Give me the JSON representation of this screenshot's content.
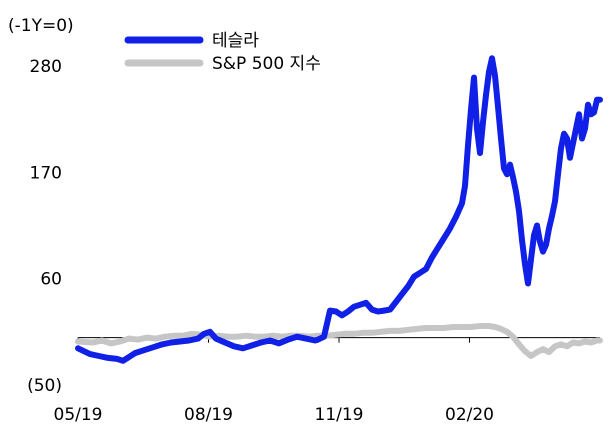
{
  "chart_data": {
    "type": "line",
    "unit_label": "(-1Y=0)",
    "x_ticks": [
      "05/19",
      "08/19",
      "11/19",
      "02/20"
    ],
    "y_ticks": [
      280,
      170,
      60,
      -50
    ],
    "y_tick_labels": [
      "280",
      "170",
      "60",
      "(50)"
    ],
    "ylim": [
      -50,
      280
    ],
    "grid": false,
    "legend": "top-left",
    "series": [
      {
        "name": "테슬라",
        "color": "#1020e6",
        "points": [
          [
            0,
            -12
          ],
          [
            4,
            -18
          ],
          [
            7,
            -20
          ],
          [
            10,
            -22
          ],
          [
            13,
            -23
          ],
          [
            15,
            -25
          ],
          [
            17,
            -21
          ],
          [
            19,
            -17
          ],
          [
            22,
            -14
          ],
          [
            25,
            -11
          ],
          [
            28,
            -8
          ],
          [
            31,
            -6
          ],
          [
            34,
            -5
          ],
          [
            37,
            -4
          ],
          [
            40,
            -2
          ],
          [
            42,
            3
          ],
          [
            44,
            5
          ],
          [
            46,
            -2
          ],
          [
            49,
            -6
          ],
          [
            52,
            -10
          ],
          [
            55,
            -12
          ],
          [
            58,
            -9
          ],
          [
            61,
            -6
          ],
          [
            64,
            -4
          ],
          [
            67,
            -7
          ],
          [
            70,
            -3
          ],
          [
            73,
            0
          ],
          [
            76,
            -2
          ],
          [
            79,
            -4
          ],
          [
            80,
            -3
          ],
          [
            82,
            0
          ],
          [
            84,
            27
          ],
          [
            86,
            26
          ],
          [
            88,
            22
          ],
          [
            90,
            26
          ],
          [
            92,
            31
          ],
          [
            94,
            33
          ],
          [
            96,
            35
          ],
          [
            98,
            28
          ],
          [
            100,
            26
          ],
          [
            102,
            27
          ],
          [
            104,
            28
          ],
          [
            106,
            36
          ],
          [
            108,
            44
          ],
          [
            110,
            52
          ],
          [
            112,
            62
          ],
          [
            114,
            66
          ],
          [
            116,
            70
          ],
          [
            118,
            82
          ],
          [
            120,
            92
          ],
          [
            122,
            102
          ],
          [
            124,
            112
          ],
          [
            126,
            124
          ],
          [
            128,
            138
          ],
          [
            129,
            156
          ],
          [
            130,
            198
          ],
          [
            131,
            235
          ],
          [
            132,
            268
          ],
          [
            133,
            215
          ],
          [
            134,
            190
          ],
          [
            135,
            222
          ],
          [
            136,
            250
          ],
          [
            137,
            274
          ],
          [
            138,
            288
          ],
          [
            139,
            270
          ],
          [
            140,
            238
          ],
          [
            141,
            205
          ],
          [
            142,
            174
          ],
          [
            143,
            168
          ],
          [
            144,
            178
          ],
          [
            145,
            165
          ],
          [
            146,
            150
          ],
          [
            147,
            130
          ],
          [
            148,
            100
          ],
          [
            149,
            75
          ],
          [
            150,
            55
          ],
          [
            151,
            80
          ],
          [
            152,
            105
          ],
          [
            153,
            115
          ],
          [
            154,
            98
          ],
          [
            155,
            88
          ],
          [
            156,
            95
          ],
          [
            157,
            112
          ],
          [
            158,
            125
          ],
          [
            159,
            140
          ],
          [
            160,
            168
          ],
          [
            161,
            195
          ],
          [
            162,
            210
          ],
          [
            163,
            205
          ],
          [
            164,
            185
          ],
          [
            165,
            200
          ],
          [
            166,
            215
          ],
          [
            167,
            230
          ],
          [
            168,
            205
          ],
          [
            169,
            215
          ],
          [
            170,
            240
          ],
          [
            171,
            230
          ],
          [
            172,
            232
          ],
          [
            173,
            245
          ],
          [
            174,
            245
          ]
        ]
      },
      {
        "name": "S&P 500 지수",
        "color": "#c6c6c6",
        "points": [
          [
            0,
            -5
          ],
          [
            5,
            -6
          ],
          [
            8,
            -4
          ],
          [
            11,
            -7
          ],
          [
            14,
            -5
          ],
          [
            17,
            -2
          ],
          [
            20,
            -3
          ],
          [
            23,
            -1
          ],
          [
            26,
            -2
          ],
          [
            29,
            0
          ],
          [
            32,
            1
          ],
          [
            35,
            1
          ],
          [
            38,
            3
          ],
          [
            41,
            2
          ],
          [
            44,
            0
          ],
          [
            47,
            1
          ],
          [
            50,
            0
          ],
          [
            53,
            0
          ],
          [
            56,
            1
          ],
          [
            59,
            0
          ],
          [
            62,
            0
          ],
          [
            65,
            1
          ],
          [
            68,
            0
          ],
          [
            71,
            1
          ],
          [
            74,
            1
          ],
          [
            77,
            0
          ],
          [
            80,
            1
          ],
          [
            83,
            1
          ],
          [
            86,
            2
          ],
          [
            89,
            3
          ],
          [
            92,
            3
          ],
          [
            95,
            4
          ],
          [
            98,
            4
          ],
          [
            101,
            5
          ],
          [
            104,
            6
          ],
          [
            107,
            6
          ],
          [
            110,
            7
          ],
          [
            113,
            8
          ],
          [
            116,
            9
          ],
          [
            119,
            9
          ],
          [
            122,
            9
          ],
          [
            125,
            10
          ],
          [
            128,
            10
          ],
          [
            131,
            10
          ],
          [
            134,
            11
          ],
          [
            137,
            11
          ],
          [
            139,
            10
          ],
          [
            141,
            8
          ],
          [
            143,
            5
          ],
          [
            145,
            0
          ],
          [
            147,
            -8
          ],
          [
            149,
            -15
          ],
          [
            151,
            -20
          ],
          [
            153,
            -16
          ],
          [
            155,
            -13
          ],
          [
            157,
            -16
          ],
          [
            159,
            -10
          ],
          [
            161,
            -8
          ],
          [
            163,
            -10
          ],
          [
            165,
            -6
          ],
          [
            167,
            -7
          ],
          [
            169,
            -5
          ],
          [
            171,
            -6
          ],
          [
            173,
            -4
          ],
          [
            174,
            -4
          ]
        ]
      }
    ]
  }
}
